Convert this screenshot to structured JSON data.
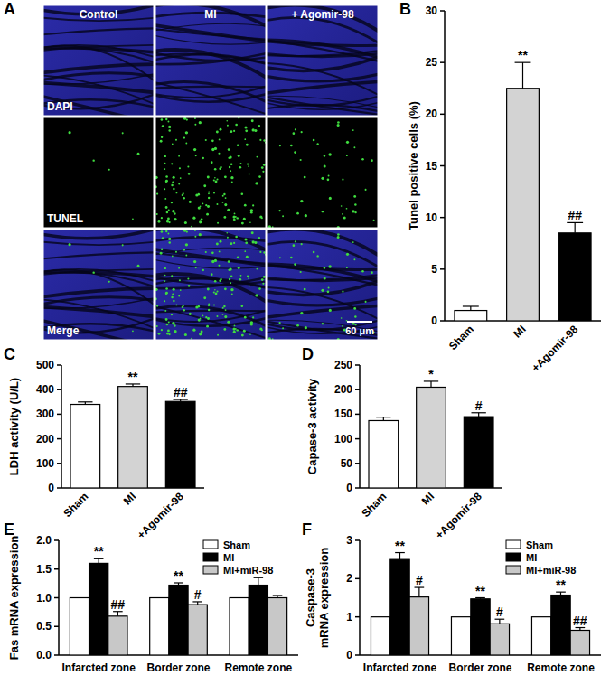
{
  "panel_labels": [
    "A",
    "B",
    "C",
    "D",
    "E",
    "F"
  ],
  "micrograph": {
    "columns": [
      "Control",
      "MI",
      "+ Agomir-98"
    ],
    "rows": [
      "DAPI",
      "TUNEL",
      "Merge"
    ],
    "scale_bar": "60 μm"
  },
  "chart_data": [
    {
      "type": "bar",
      "ylabel": "Tunel positive cells (%)",
      "categories": [
        "Sham",
        "MI",
        "+Agomir-98"
      ],
      "values": [
        1.0,
        22.5,
        8.5
      ],
      "errors": [
        0.4,
        2.5,
        1.0
      ],
      "annotations": [
        null,
        "**",
        "##"
      ],
      "colors": [
        "#ffffff",
        "#d3d3d3",
        "#000000"
      ],
      "ylim": [
        0,
        30
      ],
      "yticks": [
        0,
        5,
        10,
        15,
        20,
        25,
        30
      ]
    },
    {
      "type": "bar",
      "ylabel": "LDH activity (U/L)",
      "categories": [
        "Sham",
        "MI",
        "+Agomir-98"
      ],
      "values": [
        340,
        413,
        352
      ],
      "errors": [
        10,
        10,
        8
      ],
      "annotations": [
        null,
        "**",
        "##"
      ],
      "colors": [
        "#ffffff",
        "#d3d3d3",
        "#000000"
      ],
      "ylim": [
        0,
        500
      ],
      "yticks": [
        0,
        100,
        200,
        300,
        400,
        500
      ]
    },
    {
      "type": "bar",
      "ylabel": "Capase-3 activity",
      "categories": [
        "Sham",
        "MI",
        "+Agomir-98"
      ],
      "values": [
        137,
        205,
        145
      ],
      "errors": [
        7,
        12,
        8
      ],
      "annotations": [
        null,
        "*",
        "#"
      ],
      "colors": [
        "#ffffff",
        "#d3d3d3",
        "#000000"
      ],
      "ylim": [
        0,
        250
      ],
      "yticks": [
        0,
        50,
        100,
        150,
        200,
        250
      ]
    },
    {
      "type": "bar",
      "ylabel": "Fas mRNA expression",
      "categories": [
        "Infarcted zone",
        "Border zone",
        "Remote zone"
      ],
      "series": [
        {
          "name": "Sham",
          "color": "#ffffff",
          "values": [
            1.0,
            1.0,
            1.0
          ]
        },
        {
          "name": "MI",
          "color": "#000000",
          "values": [
            1.6,
            1.22,
            1.22
          ],
          "errors": [
            0.08,
            0.04,
            0.13
          ],
          "annotations": [
            "**",
            "**",
            null
          ]
        },
        {
          "name": "MI+miR-98",
          "color": "#c8c8c8",
          "values": [
            0.68,
            0.88,
            1.0
          ],
          "errors": [
            0.08,
            0.05,
            0.04
          ],
          "annotations": [
            "##",
            "#",
            null
          ]
        }
      ],
      "legend": "upper right",
      "ylim": [
        0,
        2
      ],
      "yticks": [
        {
          "value": 0,
          "label": "0.0"
        },
        0.5,
        {
          "value": 1,
          "label": "1.0"
        },
        1.5,
        {
          "value": 2,
          "label": "2.0"
        }
      ]
    },
    {
      "type": "bar",
      "ylabel": [
        "Caspase-3",
        "mRNA expression"
      ],
      "categories": [
        "Infarcted zone",
        "Border zone",
        "Remote zone"
      ],
      "series": [
        {
          "name": "Sham",
          "color": "#ffffff",
          "values": [
            1.0,
            1.0,
            1.0
          ]
        },
        {
          "name": "MI",
          "color": "#000000",
          "values": [
            2.5,
            1.47,
            1.57
          ],
          "errors": [
            0.18,
            0.03,
            0.08
          ],
          "annotations": [
            "**",
            "**",
            "**"
          ]
        },
        {
          "name": "MI+miR-98",
          "color": "#c8c8c8",
          "values": [
            1.52,
            0.82,
            0.65
          ],
          "errors": [
            0.25,
            0.12,
            0.07
          ],
          "annotations": [
            "#",
            "#",
            "##"
          ]
        }
      ],
      "legend": "upper right",
      "ylim": [
        0,
        3
      ],
      "yticks": [
        0,
        1,
        2,
        3
      ]
    }
  ]
}
